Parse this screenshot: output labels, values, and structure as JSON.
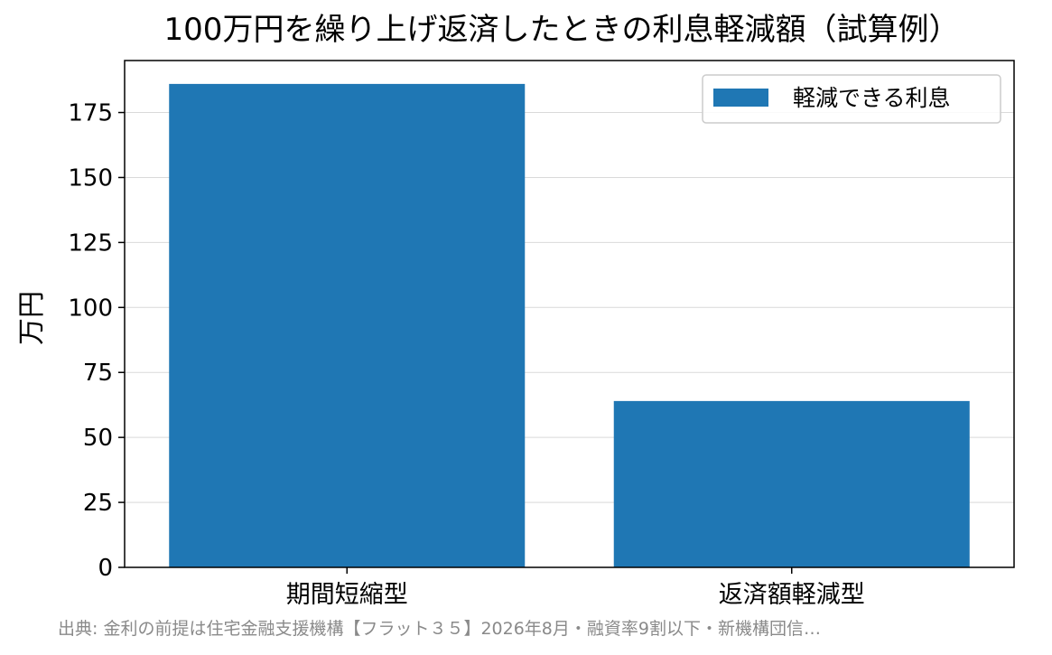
{
  "chart_data": {
    "type": "bar",
    "title": "100万円を繰り上げ返済したときの利息軽減額（試算例）",
    "xlabel": "",
    "ylabel": "万円",
    "categories": [
      "期間短縮型",
      "返済額軽減型"
    ],
    "series": [
      {
        "name": "軽減できる利息",
        "values": [
          186,
          64
        ]
      }
    ],
    "ylim": [
      0,
      195
    ],
    "yticks": [
      0,
      25,
      50,
      75,
      100,
      125,
      150,
      175
    ],
    "grid": "horizontal",
    "legend": "top-right",
    "bar_color": "#1f77b4"
  },
  "source": "出典: 金利の前提は住宅金融支援機構【フラット３５】2026年8月・融資率9割以下・新機構団信…"
}
